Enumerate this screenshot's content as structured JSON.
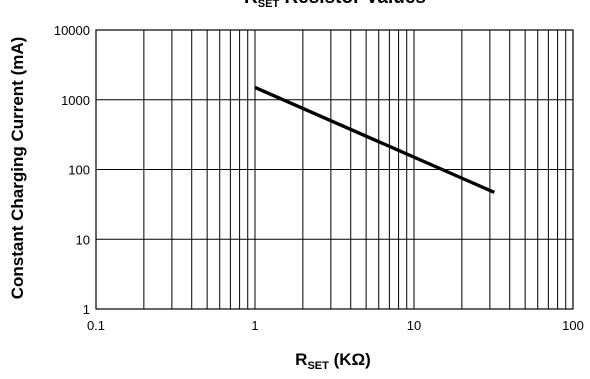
{
  "chart_data": {
    "type": "line",
    "title": {
      "main": "R",
      "sub": "SET",
      "rest": " Resistor Values"
    },
    "xlabel": {
      "main": "R",
      "sub": "SET",
      "rest": " (KΩ)"
    },
    "ylabel": "Constant Charging Current (mA)",
    "x_scale": "log",
    "y_scale": "log",
    "xlim": [
      0.1,
      100
    ],
    "ylim": [
      1,
      10000
    ],
    "grid": true,
    "x_ticks": [
      {
        "value": 0.1,
        "label": "0.1"
      },
      {
        "value": 1,
        "label": "1"
      },
      {
        "value": 10,
        "label": "10"
      },
      {
        "value": 100,
        "label": "100"
      }
    ],
    "y_ticks": [
      {
        "value": 1,
        "label": "1"
      },
      {
        "value": 10,
        "label": "10"
      },
      {
        "value": 100,
        "label": "100"
      },
      {
        "value": 1000,
        "label": "1000"
      },
      {
        "value": 10000,
        "label": "10000"
      }
    ],
    "series": [
      {
        "x": [
          1,
          32
        ],
        "y": [
          1500,
          47
        ]
      }
    ]
  }
}
